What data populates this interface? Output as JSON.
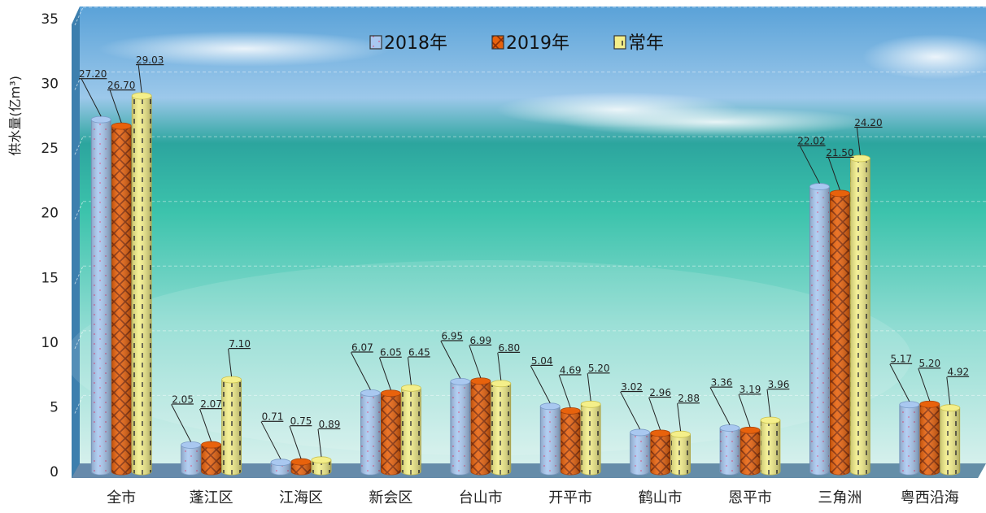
{
  "chart_data": {
    "type": "bar",
    "title": "",
    "xlabel": "",
    "ylabel": "供水量(亿m³)",
    "ylim": [
      0,
      35
    ],
    "yticks": [
      "0",
      "5",
      "10",
      "15",
      "20",
      "25",
      "30",
      "35"
    ],
    "grid": true,
    "legend_position": "top-center",
    "categories": [
      "全市",
      "蓬江区",
      "江海区",
      "新会区",
      "台山市",
      "开平市",
      "鹤山市",
      "恩平市",
      "三角洲",
      "粤西沿海"
    ],
    "series": [
      {
        "name": "2018年",
        "values": [
          27.2,
          2.05,
          0.71,
          6.07,
          6.95,
          5.04,
          3.02,
          3.36,
          22.02,
          5.17
        ],
        "labels": [
          "27.20",
          "2.05",
          "0.71",
          "6.07",
          "6.95",
          "5.04",
          "3.02",
          "3.36",
          "22.02",
          "5.17"
        ],
        "color": "#a9c8f0",
        "pattern": "dots"
      },
      {
        "name": "2019年",
        "values": [
          26.7,
          2.07,
          0.75,
          6.05,
          6.99,
          4.69,
          2.96,
          3.19,
          21.5,
          5.2
        ],
        "labels": [
          "26.70",
          "2.07",
          "0.75",
          "6.05",
          "6.99",
          "4.69",
          "2.96",
          "3.19",
          "21.50",
          "5.20"
        ],
        "color": "#e8620c",
        "pattern": "weave"
      },
      {
        "name": "常年",
        "values": [
          29.03,
          7.1,
          0.89,
          6.45,
          6.8,
          5.2,
          2.88,
          3.96,
          24.2,
          4.92
        ],
        "labels": [
          "29.03",
          "7.10",
          "0.89",
          "6.45",
          "6.80",
          "5.20",
          "2.88",
          "3.96",
          "24.20",
          "4.92"
        ],
        "color": "#f4ef8a",
        "pattern": "dashes"
      }
    ]
  }
}
